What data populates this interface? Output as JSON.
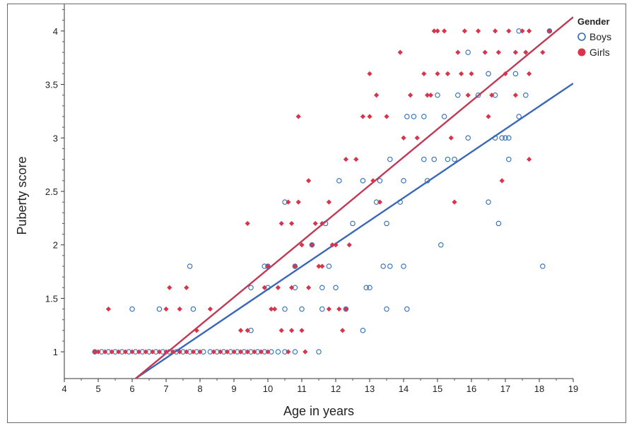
{
  "chart_data": {
    "type": "scatter",
    "title": "",
    "xlabel": "Age in years",
    "ylabel": "Puberty score",
    "xlim": [
      4,
      19
    ],
    "ylim": [
      0.75,
      4.25
    ],
    "xticks": [
      "4",
      "5",
      "6",
      "7",
      "8",
      "9",
      "10",
      "11",
      "12",
      "13",
      "14",
      "15",
      "16",
      "17",
      "18",
      "19"
    ],
    "yticks": [
      "1",
      "1.5",
      "2",
      "2.5",
      "3",
      "3.5",
      "4"
    ],
    "grid": false,
    "legend": {
      "title": "Gender",
      "position": "top-right"
    },
    "series": [
      {
        "name": "Boys",
        "color": "#2e6db4",
        "marker": "open-circle",
        "points": [
          [
            4.9,
            1
          ],
          [
            5.1,
            1
          ],
          [
            5.3,
            1
          ],
          [
            5.5,
            1
          ],
          [
            5.7,
            1
          ],
          [
            5.9,
            1
          ],
          [
            6.1,
            1
          ],
          [
            6.3,
            1
          ],
          [
            6.5,
            1
          ],
          [
            6.7,
            1
          ],
          [
            6.9,
            1
          ],
          [
            7.1,
            1
          ],
          [
            7.3,
            1
          ],
          [
            7.5,
            1
          ],
          [
            7.7,
            1
          ],
          [
            7.9,
            1
          ],
          [
            8.1,
            1
          ],
          [
            8.3,
            1
          ],
          [
            8.5,
            1
          ],
          [
            8.7,
            1
          ],
          [
            8.9,
            1
          ],
          [
            9.1,
            1
          ],
          [
            9.3,
            1
          ],
          [
            9.5,
            1
          ],
          [
            9.7,
            1
          ],
          [
            9.9,
            1
          ],
          [
            10.1,
            1
          ],
          [
            10.3,
            1
          ],
          [
            10.5,
            1
          ],
          [
            10.8,
            1
          ],
          [
            11.5,
            1
          ],
          [
            6,
            1.4
          ],
          [
            6.8,
            1.4
          ],
          [
            7.8,
            1.4
          ],
          [
            10.5,
            1.4
          ],
          [
            11,
            1.4
          ],
          [
            11.6,
            1.4
          ],
          [
            12.3,
            1.4
          ],
          [
            13.5,
            1.4
          ],
          [
            14.1,
            1.4
          ],
          [
            7.7,
            1.8
          ],
          [
            9.5,
            1.2
          ],
          [
            9.9,
            1.8
          ],
          [
            10,
            1.8
          ],
          [
            10.8,
            1.8
          ],
          [
            11.8,
            1.8
          ],
          [
            13.4,
            1.8
          ],
          [
            13.6,
            1.8
          ],
          [
            14,
            1.8
          ],
          [
            9.5,
            1.6
          ],
          [
            10,
            1.6
          ],
          [
            10.8,
            1.6
          ],
          [
            11.6,
            1.6
          ],
          [
            12,
            1.6
          ],
          [
            12.9,
            1.6
          ],
          [
            13,
            1.6
          ],
          [
            12.8,
            1.2
          ],
          [
            10.5,
            2.4
          ],
          [
            11.3,
            2
          ],
          [
            11.7,
            2.2
          ],
          [
            12.1,
            2.6
          ],
          [
            12.5,
            2.2
          ],
          [
            12.8,
            2.6
          ],
          [
            13.2,
            2.4
          ],
          [
            13.3,
            2.6
          ],
          [
            13.5,
            2.2
          ],
          [
            13.6,
            2.8
          ],
          [
            13.9,
            2.4
          ],
          [
            14,
            2.6
          ],
          [
            14.1,
            3.2
          ],
          [
            14.3,
            3.2
          ],
          [
            14.6,
            2.8
          ],
          [
            14.6,
            3.2
          ],
          [
            14.7,
            2.6
          ],
          [
            14.9,
            2.8
          ],
          [
            15,
            3.4
          ],
          [
            15.1,
            2
          ],
          [
            15.2,
            3.2
          ],
          [
            15.3,
            2.8
          ],
          [
            15.5,
            2.8
          ],
          [
            15.6,
            3.4
          ],
          [
            15.9,
            3.8
          ],
          [
            15.9,
            3
          ],
          [
            16.2,
            3.4
          ],
          [
            16.5,
            3.6
          ],
          [
            16.5,
            2.4
          ],
          [
            16.7,
            3.4
          ],
          [
            16.7,
            3
          ],
          [
            16.8,
            2.2
          ],
          [
            16.9,
            3
          ],
          [
            17,
            3
          ],
          [
            17.1,
            2.8
          ],
          [
            17.1,
            3
          ],
          [
            17.3,
            3.6
          ],
          [
            17.4,
            4
          ],
          [
            17.4,
            3.2
          ],
          [
            17.6,
            3.4
          ],
          [
            18.1,
            1.8
          ],
          [
            18.3,
            4
          ]
        ]
      },
      {
        "name": "Girls",
        "color": "#d8354d",
        "marker": "filled-diamond",
        "points": [
          [
            4.9,
            1
          ],
          [
            5.0,
            1
          ],
          [
            5.2,
            1
          ],
          [
            5.4,
            1
          ],
          [
            5.6,
            1
          ],
          [
            5.8,
            1
          ],
          [
            6.0,
            1
          ],
          [
            6.2,
            1
          ],
          [
            6.4,
            1
          ],
          [
            6.6,
            1
          ],
          [
            6.8,
            1
          ],
          [
            7.0,
            1
          ],
          [
            7.2,
            1
          ],
          [
            7.4,
            1
          ],
          [
            7.6,
            1
          ],
          [
            7.8,
            1
          ],
          [
            8.0,
            1
          ],
          [
            8.4,
            1
          ],
          [
            8.6,
            1
          ],
          [
            8.8,
            1
          ],
          [
            9.0,
            1
          ],
          [
            9.2,
            1
          ],
          [
            9.4,
            1
          ],
          [
            9.6,
            1
          ],
          [
            9.8,
            1
          ],
          [
            10.0,
            1
          ],
          [
            10.6,
            1
          ],
          [
            11.1,
            1
          ],
          [
            5.3,
            1.4
          ],
          [
            7,
            1.4
          ],
          [
            7.4,
            1.4
          ],
          [
            8.3,
            1.4
          ],
          [
            9.2,
            1.2
          ],
          [
            9.4,
            1.2
          ],
          [
            9.9,
            1.6
          ],
          [
            10.0,
            1.8
          ],
          [
            10.1,
            1.4
          ],
          [
            10.2,
            1.4
          ],
          [
            10.4,
            1.2
          ],
          [
            10.7,
            1.2
          ],
          [
            10.7,
            1.6
          ],
          [
            11,
            1.2
          ],
          [
            11.2,
            1.6
          ],
          [
            11.6,
            1.8
          ],
          [
            11.8,
            1.4
          ],
          [
            12.1,
            1.4
          ],
          [
            12.2,
            1.2
          ],
          [
            12.3,
            1.4
          ],
          [
            7.1,
            1.6
          ],
          [
            7.6,
            1.6
          ],
          [
            7.9,
            1.2
          ],
          [
            9.4,
            2.2
          ],
          [
            10.4,
            2.2
          ],
          [
            10.7,
            2.2
          ],
          [
            10.9,
            2.4
          ],
          [
            11.0,
            2
          ],
          [
            11.2,
            2.6
          ],
          [
            11.4,
            2.2
          ],
          [
            11.6,
            2.2
          ],
          [
            11.8,
            2.4
          ],
          [
            12.0,
            2
          ],
          [
            12.3,
            2.8
          ],
          [
            12.4,
            2
          ],
          [
            12.6,
            2.8
          ],
          [
            12.8,
            3.2
          ],
          [
            13.0,
            3.2
          ],
          [
            13.1,
            2.6
          ],
          [
            13.2,
            3.4
          ],
          [
            13.3,
            2.4
          ],
          [
            13.5,
            3.2
          ],
          [
            13.0,
            3.6
          ],
          [
            10.9,
            3.2
          ],
          [
            10.3,
            1.6
          ],
          [
            10.6,
            2.4
          ],
          [
            10.8,
            1.8
          ],
          [
            11.3,
            2
          ],
          [
            11.5,
            1.8
          ],
          [
            11.9,
            2
          ],
          [
            13.9,
            3.8
          ],
          [
            14,
            3
          ],
          [
            14.2,
            3.4
          ],
          [
            14.4,
            3
          ],
          [
            14.6,
            3.6
          ],
          [
            14.8,
            3.4
          ],
          [
            14.9,
            4
          ],
          [
            15.0,
            3.6
          ],
          [
            15.2,
            4
          ],
          [
            15.3,
            3.6
          ],
          [
            15.4,
            3
          ],
          [
            15.5,
            2.4
          ],
          [
            15.6,
            3.8
          ],
          [
            15.7,
            3.6
          ],
          [
            15.8,
            4
          ],
          [
            15.9,
            3.4
          ],
          [
            16.0,
            3.6
          ],
          [
            16.2,
            4
          ],
          [
            16.4,
            3.8
          ],
          [
            16.6,
            3.4
          ],
          [
            16.7,
            4
          ],
          [
            16.8,
            3.8
          ],
          [
            17.0,
            3.6
          ],
          [
            17.1,
            4
          ],
          [
            17.3,
            3.4
          ],
          [
            17.5,
            4
          ],
          [
            17.6,
            3.8
          ],
          [
            17.7,
            4
          ],
          [
            17.7,
            2.8
          ],
          [
            17.3,
            3.8
          ],
          [
            16.9,
            2.6
          ],
          [
            18.1,
            3.8
          ],
          [
            18.3,
            4
          ],
          [
            16.5,
            3.2
          ],
          [
            17.7,
            3.6
          ],
          [
            15.0,
            4
          ],
          [
            14.7,
            3.4
          ]
        ]
      }
    ],
    "fit_lines": [
      {
        "series": "Boys",
        "color": "#3a67b8",
        "x": [
          6.1,
          19
        ],
        "y": [
          0.75,
          3.51
        ]
      },
      {
        "series": "Girls",
        "color": "#c03a55",
        "x": [
          6.1,
          19
        ],
        "y": [
          0.75,
          4.13
        ]
      }
    ]
  }
}
